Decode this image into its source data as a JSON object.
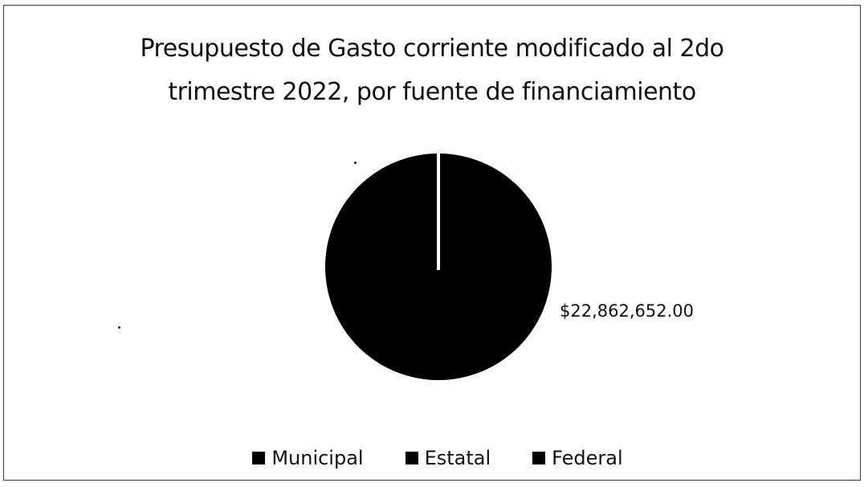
{
  "chart_data": {
    "type": "pie",
    "title": "Presupuesto de Gasto corriente modificado al 2do trimestre 2022, por fuente de financiamiento",
    "title_lines": [
      "Presupuesto de Gasto corriente modificado al 2do",
      "trimestre 2022, por fuente de financiamiento"
    ],
    "series": [
      {
        "name": "Municipal",
        "value": 0
      },
      {
        "name": "Estatal",
        "value": 0
      },
      {
        "name": "Federal",
        "value": 22862652.0,
        "label": "$22,862,652.00"
      }
    ],
    "legend": [
      "Municipal",
      "Estatal",
      "Federal"
    ],
    "legend_placement": "bottom",
    "colors": {
      "slice": "#000000",
      "separator": "#ffffff",
      "frame": "#3a3a3a"
    }
  }
}
